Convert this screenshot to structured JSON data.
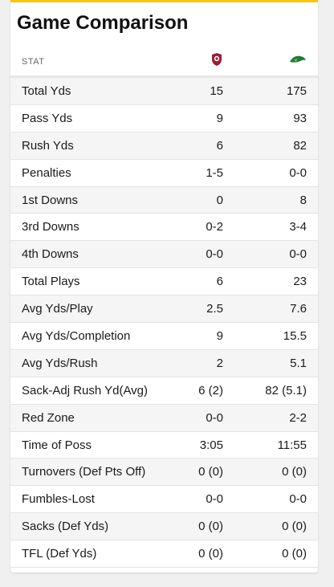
{
  "title": "Game Comparison",
  "header": {
    "stat_label": "STAT",
    "team1_logo": "red-badge-logo-icon",
    "team2_logo": "green-team-logo-icon"
  },
  "colors": {
    "accent": "#f5c518",
    "team1": "#9e1b32",
    "team2": "#1f7a3a"
  },
  "rows": [
    {
      "stat": "Total Yds",
      "team1": "15",
      "team2": "175"
    },
    {
      "stat": "Pass Yds",
      "team1": "9",
      "team2": "93"
    },
    {
      "stat": "Rush Yds",
      "team1": "6",
      "team2": "82"
    },
    {
      "stat": "Penalties",
      "team1": "1-5",
      "team2": "0-0"
    },
    {
      "stat": "1st Downs",
      "team1": "0",
      "team2": "8"
    },
    {
      "stat": "3rd Downs",
      "team1": "0-2",
      "team2": "3-4"
    },
    {
      "stat": "4th Downs",
      "team1": "0-0",
      "team2": "0-0"
    },
    {
      "stat": "Total Plays",
      "team1": "6",
      "team2": "23"
    },
    {
      "stat": "Avg Yds/Play",
      "team1": "2.5",
      "team2": "7.6"
    },
    {
      "stat": "Avg Yds/Completion",
      "team1": "9",
      "team2": "15.5"
    },
    {
      "stat": "Avg Yds/Rush",
      "team1": "2",
      "team2": "5.1"
    },
    {
      "stat": "Sack-Adj Rush Yd(Avg)",
      "team1": "6 (2)",
      "team2": "82 (5.1)"
    },
    {
      "stat": "Red Zone",
      "team1": "0-0",
      "team2": "2-2"
    },
    {
      "stat": "Time of Poss",
      "team1": "3:05",
      "team2": "11:55"
    },
    {
      "stat": "Turnovers (Def Pts Off)",
      "team1": "0 (0)",
      "team2": "0 (0)"
    },
    {
      "stat": "Fumbles-Lost",
      "team1": "0-0",
      "team2": "0-0"
    },
    {
      "stat": "Sacks (Def Yds)",
      "team1": "0 (0)",
      "team2": "0 (0)"
    },
    {
      "stat": "TFL (Def Yds)",
      "team1": "0 (0)",
      "team2": "0 (0)"
    }
  ]
}
